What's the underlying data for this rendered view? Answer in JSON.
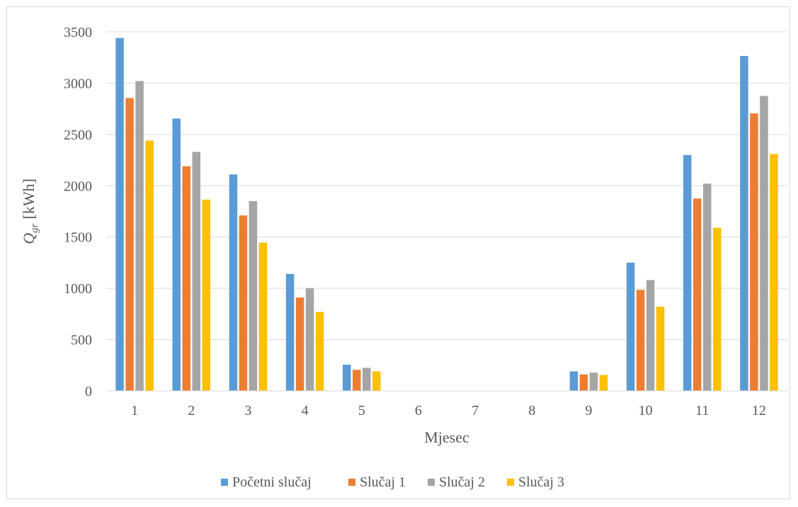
{
  "chart_data": {
    "type": "bar",
    "title": "",
    "xlabel": "Mjesec",
    "ylabel": {
      "symbol": "Q",
      "subscript": "gr",
      "unit": "[kWh]"
    },
    "categories": [
      "1",
      "2",
      "3",
      "4",
      "5",
      "6",
      "7",
      "8",
      "9",
      "10",
      "11",
      "12"
    ],
    "ylim": [
      0,
      3500
    ],
    "yticks": [
      0,
      500,
      1000,
      1500,
      2000,
      2500,
      3000,
      3500
    ],
    "grid": true,
    "legend_position": "bottom",
    "series": [
      {
        "name": "Početni slučaj",
        "color": "#5b9bd5",
        "values": [
          3440,
          2655,
          2110,
          1140,
          255,
          0,
          0,
          0,
          190,
          1250,
          2300,
          3265
        ]
      },
      {
        "name": "Slučaj 1",
        "color": "#ed7d31",
        "values": [
          2855,
          2190,
          1710,
          910,
          205,
          0,
          0,
          0,
          160,
          985,
          1875,
          2705
        ]
      },
      {
        "name": "Slučaj 2",
        "color": "#a5a5a5",
        "values": [
          3020,
          2330,
          1850,
          1000,
          225,
          0,
          0,
          0,
          178,
          1080,
          2020,
          2875
        ]
      },
      {
        "name": "Slučaj 3",
        "color": "#ffc000",
        "values": [
          2440,
          1865,
          1445,
          770,
          190,
          0,
          0,
          0,
          155,
          820,
          1590,
          2310
        ]
      }
    ]
  }
}
